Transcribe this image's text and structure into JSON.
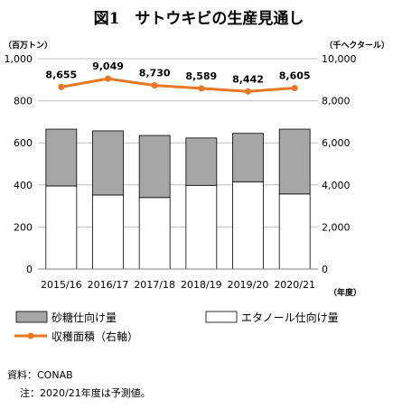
{
  "chart_data": {
    "type": "bar+line",
    "title": "図1　サトウキビの生産見通し",
    "left_axis_unit": "（百万トン）",
    "right_axis_unit": "（千ヘクタール）",
    "x_axis_unit": "（年度）",
    "categories": [
      "2015/16",
      "2016/17",
      "2017/18",
      "2018/19",
      "2019/20",
      "2020/21"
    ],
    "y_left": {
      "min": 0,
      "max": 1000,
      "ticks": [
        "0",
        "200",
        "400",
        "600",
        "800",
        "1,000"
      ]
    },
    "y_right": {
      "min": 0,
      "max": 10000,
      "ticks": [
        "0",
        "2,000",
        "4,000",
        "6,000",
        "8,000",
        "10,000"
      ]
    },
    "series": [
      {
        "name": "エタノール仕向け量",
        "type": "bar",
        "stack": "bottom",
        "axis": "left",
        "color": "#ffffff",
        "values": [
          395,
          352,
          340,
          398,
          415,
          357
        ]
      },
      {
        "name": "砂糖仕向け量",
        "type": "bar",
        "stack": "top",
        "axis": "left",
        "color": "#a6a6a6",
        "values": [
          270,
          305,
          295,
          225,
          230,
          308
        ]
      },
      {
        "name": "収穫面積（右軸）",
        "type": "line",
        "axis": "right",
        "color": "#e87722",
        "values": [
          8655,
          9049,
          8730,
          8589,
          8442,
          8605
        ],
        "labels": [
          "8,655",
          "9,049",
          "8,730",
          "8,589",
          "8,442",
          "8,605"
        ]
      }
    ],
    "legend": "bottom",
    "grid": true
  },
  "notes": {
    "source": "資料：CONAB",
    "note": "注：2020/21年度は予測値。"
  }
}
